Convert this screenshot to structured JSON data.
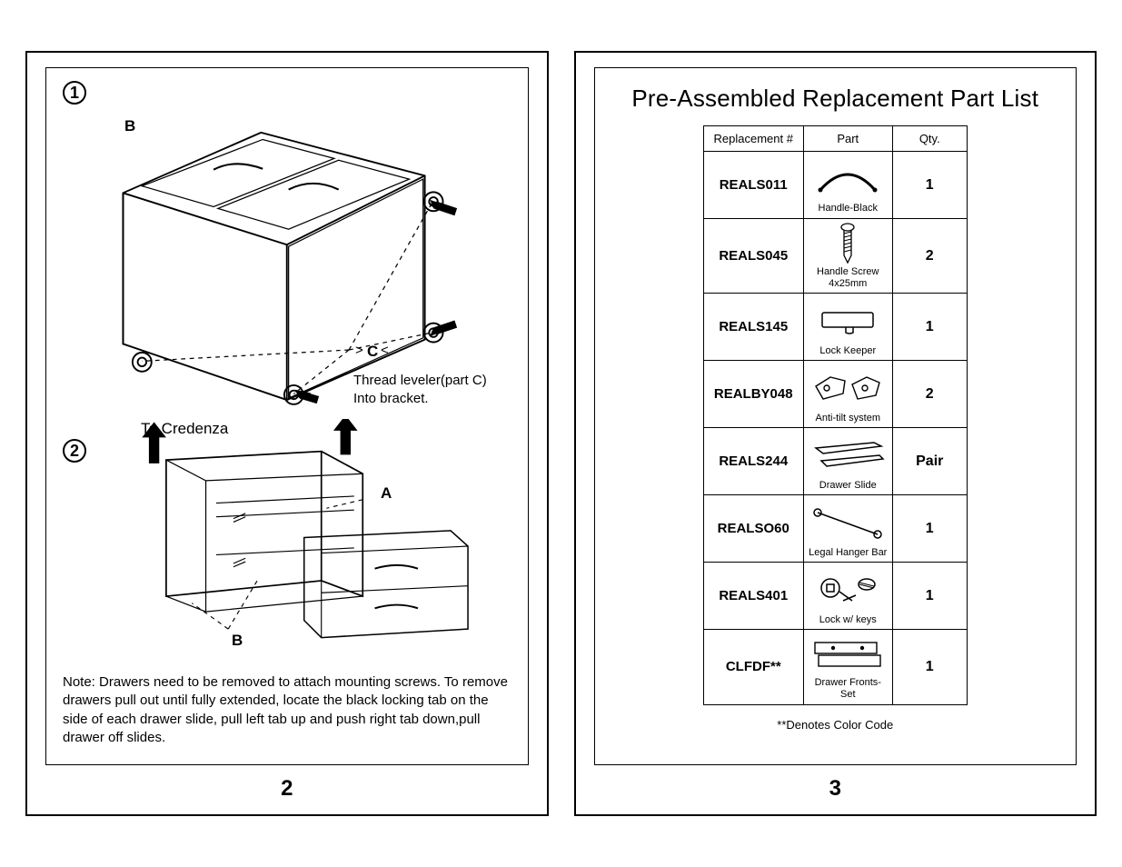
{
  "left_page_number": "2",
  "right_page_number": "3",
  "step1_number": "1",
  "step2_number": "2",
  "label_B1": "B",
  "label_C": "C",
  "label_A": "A",
  "label_B2": "B",
  "caption_leveler": "Thread leveler(part C)\nInto bracket.",
  "to_credenza": "To Credenza",
  "note_text": "Note: Drawers need to be removed to attach mounting screws. To remove drawers pull out until fully extended, locate the black locking tab on the side of each drawer slide, pull left tab up and push right tab down,pull drawer off slides.",
  "right_title": "Pre-Assembled Replacement Part List",
  "table_headers": {
    "c1": "Replacement #",
    "c2": "Part",
    "c3": "Qty."
  },
  "parts": [
    {
      "code": "REALS011",
      "name": "Handle-Black",
      "qty": "1",
      "icon": "handle"
    },
    {
      "code": "REALS045",
      "name": "Handle Screw\n4x25mm",
      "qty": "2",
      "icon": "screw"
    },
    {
      "code": "REALS145",
      "name": "Lock Keeper",
      "qty": "1",
      "icon": "keeper"
    },
    {
      "code": "REALBY048",
      "name": "Anti-tilt system",
      "qty": "2",
      "icon": "antitilt"
    },
    {
      "code": "REALS244",
      "name": "Drawer Slide",
      "qty": "Pair",
      "icon": "slide"
    },
    {
      "code": "REALSO60",
      "name": "Legal Hanger Bar",
      "qty": "1",
      "icon": "bar"
    },
    {
      "code": "REALS401",
      "name": "Lock w/ keys",
      "qty": "1",
      "icon": "lock"
    },
    {
      "code": "CLFDF**",
      "name": "Drawer Fronts-Set",
      "qty": "1",
      "icon": "fronts"
    }
  ],
  "footnote": "**Denotes Color Code",
  "colors": {
    "line": "#000000"
  }
}
